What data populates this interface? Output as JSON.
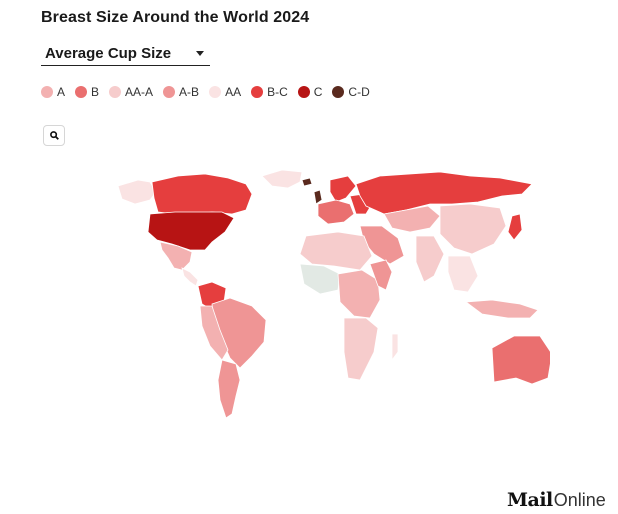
{
  "title": "Breast Size Around the World 2024",
  "dropdown": {
    "selected": "Average Cup Size"
  },
  "legend": [
    {
      "label": "A",
      "color": "#f3b1b1"
    },
    {
      "label": "B",
      "color": "#ea6f6f"
    },
    {
      "label": "AA-A",
      "color": "#f6cccc"
    },
    {
      "label": "A-B",
      "color": "#ef9595"
    },
    {
      "label": "AA",
      "color": "#fae3e3"
    },
    {
      "label": "B-C",
      "color": "#e53e3e"
    },
    {
      "label": "C",
      "color": "#b71414"
    },
    {
      "label": "C-D",
      "color": "#5a2a1e"
    }
  ],
  "search_icon": "search-icon",
  "no_data_color": "#e2e9e4",
  "brand": {
    "mail": "Mail",
    "online": "Online"
  }
}
